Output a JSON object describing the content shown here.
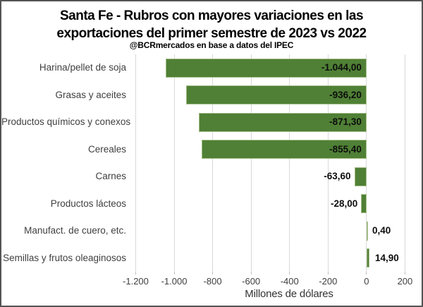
{
  "header": {
    "title_line1": "Santa Fe - Rubros con mayores variaciones en las",
    "title_line2": "exportaciones del primer semestre de 2023 vs 2022",
    "subtitle": "@BCRmercados en base a datos del IPEC"
  },
  "chart_data": {
    "type": "bar",
    "orientation": "horizontal",
    "title": "Santa Fe - Rubros con mayores variaciones en las exportaciones del primer semestre de 2023 vs 2022",
    "subtitle": "@BCRmercados en base a datos del IPEC",
    "categories": [
      "Harina/pellet de soja",
      "Grasas y aceites",
      "Productos químicos y conexos",
      "Cereales",
      "Carnes",
      "Productos lácteos",
      "Manufact. de cuero, etc.",
      "Semillas y frutos oleaginosos"
    ],
    "values": [
      -1044.0,
      -936.2,
      -871.3,
      -855.4,
      -63.6,
      -28.0,
      0.4,
      14.9
    ],
    "value_labels": [
      "-1.044,00",
      "-936,20",
      "-871,30",
      "-855,40",
      "-63,60",
      "-28,00",
      "0,40",
      "14,90"
    ],
    "xlabel": "Millones de dólares",
    "ticks": [
      {
        "value": -1200,
        "label": "-1.200"
      },
      {
        "value": -1000,
        "label": "-1.000"
      },
      {
        "value": -800,
        "label": "-800"
      },
      {
        "value": -600,
        "label": "-600"
      },
      {
        "value": -400,
        "label": "-400"
      },
      {
        "value": -200,
        "label": "-200"
      },
      {
        "value": 0,
        "label": "0"
      },
      {
        "value": 200,
        "label": "200"
      }
    ],
    "axis_min": -1220,
    "axis_max": 235,
    "grid": true,
    "legend": "none",
    "bar_color": "#4f8035",
    "bar_border_color": "#a4bd88",
    "gridline_color": "#d9d9d9",
    "tick_color": "#bfbfbf",
    "data_label_color": "#0d0d0d",
    "category_label_color": "#3f3f3f"
  }
}
